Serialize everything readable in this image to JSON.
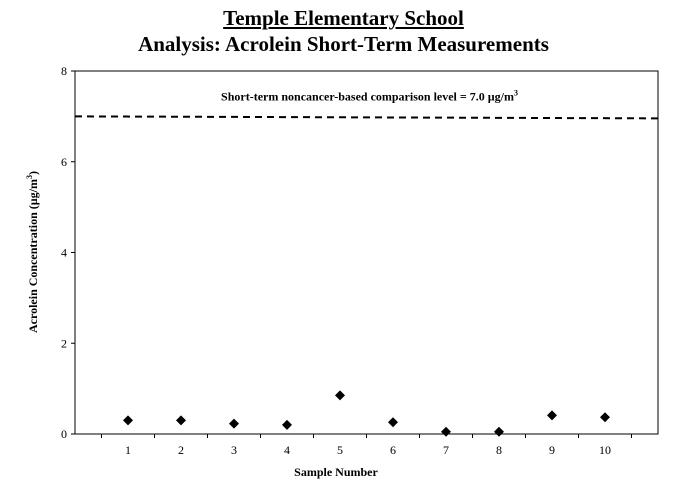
{
  "header": {
    "title": "Temple Elementary School",
    "subtitle": "Analysis: Acrolein Short-Term Measurements"
  },
  "chart_data": {
    "type": "scatter",
    "title": "Temple Elementary School",
    "subtitle": "Analysis: Acrolein Short-Term Measurements",
    "xlabel": "Sample Number",
    "ylabel_prefix": "Acrolein Concentration (µg/m",
    "ylabel_sup": "3",
    "ylabel_suffix": ")",
    "x": [
      1,
      2,
      3,
      4,
      5,
      6,
      7,
      8,
      9,
      10
    ],
    "y": [
      0.3,
      0.3,
      0.23,
      0.2,
      0.85,
      0.26,
      0.05,
      0.05,
      0.41,
      0.37
    ],
    "x_tick_labels": [
      "1",
      "2",
      "3",
      "4",
      "5",
      "6",
      "7",
      "8",
      "9",
      "10"
    ],
    "y_ticks": [
      0,
      2,
      4,
      6,
      8
    ],
    "y_tick_labels": [
      "0",
      "2",
      "4",
      "6",
      "8"
    ],
    "ylim": [
      0,
      8
    ],
    "xlim": [
      0,
      11
    ],
    "grid": false,
    "marker": "diamond",
    "marker_color": "#000000",
    "reference_line": {
      "value": 7.0,
      "style": "dashed",
      "color": "#000000",
      "label_prefix": "Short-term noncancer-based comparison level = 7.0 µg/m",
      "label_sup": "3"
    }
  }
}
